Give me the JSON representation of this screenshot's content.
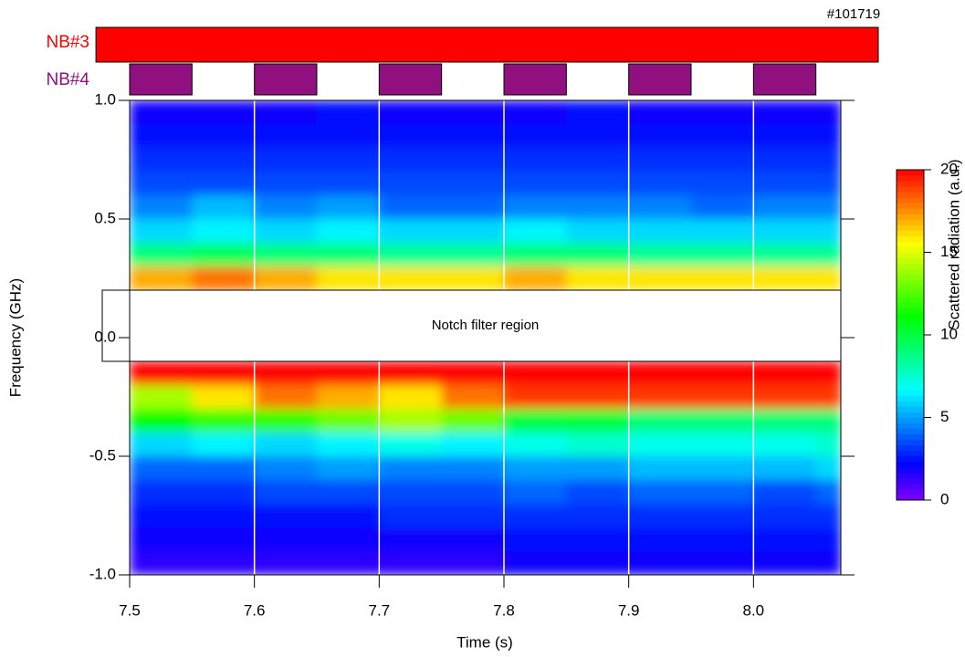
{
  "chart_data": {
    "type": "heatmap",
    "title": "#101719",
    "xlabel": "Time (s)",
    "ylabel": "Frequency (GHz)",
    "xlim": [
      7.5,
      8.07
    ],
    "ylim": [
      -1,
      1
    ],
    "xticks": [
      7.5,
      7.6,
      7.7,
      7.8,
      7.9,
      {
        "value": 8,
        "label": "8.0"
      }
    ],
    "yticks": [
      {
        "value": 1,
        "label": "1.0"
      },
      {
        "value": 0.5,
        "label": "0.5"
      },
      {
        "value": 0,
        "label": "0.0"
      },
      {
        "value": -0.5,
        "label": "-0.5"
      },
      {
        "value": -1,
        "label": "-1.0"
      }
    ],
    "x_edges": [
      7.5,
      7.55,
      7.6,
      7.65,
      7.7,
      7.75,
      7.8,
      7.85,
      7.9,
      7.95,
      8.0,
      8.05,
      8.07
    ],
    "y_edges": [
      1,
      0.9,
      0.8,
      0.7,
      0.6,
      0.5,
      0.4,
      0.3,
      0.2,
      0.1,
      0,
      -0.1,
      -0.2,
      -0.3,
      -0.4,
      -0.5,
      -0.6,
      -0.7,
      -0.8,
      -0.9,
      -1
    ],
    "z": [
      [
        2,
        2,
        2,
        2.5,
        2,
        2,
        2,
        2.5,
        2,
        2,
        2,
        2
      ],
      [
        2.5,
        2.5,
        2.5,
        2.5,
        2.5,
        2.5,
        2.5,
        2.5,
        2.5,
        2.5,
        2.5,
        2.5
      ],
      [
        3,
        3,
        3,
        3,
        3,
        3,
        3,
        3,
        3,
        3,
        3,
        3
      ],
      [
        3.5,
        3.5,
        3.5,
        3.5,
        3.5,
        3.5,
        3.5,
        3.5,
        3.5,
        3.5,
        3.5,
        3.5
      ],
      [
        4.5,
        5.5,
        4.5,
        5,
        4,
        4,
        4.5,
        4.5,
        4.5,
        4,
        4.5,
        4.5
      ],
      [
        6,
        6.5,
        6,
        6.5,
        6,
        6,
        6.5,
        6,
        6,
        6,
        6,
        6
      ],
      [
        9,
        9.5,
        9,
        9,
        8.5,
        8.5,
        9,
        9,
        8.5,
        8.5,
        8.5,
        8.5
      ],
      [
        17,
        18,
        17,
        16,
        16,
        16,
        17,
        16,
        16,
        16,
        16,
        16
      ],
      [
        null,
        null,
        null,
        null,
        null,
        null,
        null,
        null,
        null,
        null,
        null,
        null
      ],
      [
        null,
        null,
        null,
        null,
        null,
        null,
        null,
        null,
        null,
        null,
        null,
        null
      ],
      [
        null,
        null,
        null,
        null,
        null,
        null,
        null,
        null,
        null,
        null,
        null,
        null
      ],
      [
        20,
        20,
        20,
        20,
        20,
        20,
        20,
        20,
        20,
        20,
        20,
        20
      ],
      [
        14,
        16,
        18,
        17,
        16,
        18,
        19,
        19,
        19,
        19,
        19,
        19
      ],
      [
        11,
        12,
        12,
        13,
        14,
        13,
        10,
        10,
        9,
        9,
        9,
        9
      ],
      [
        6,
        6.5,
        6,
        6.5,
        7,
        6.5,
        7,
        7.5,
        7,
        7,
        7,
        7.5
      ],
      [
        4,
        4,
        4.5,
        5,
        4.5,
        4.5,
        5,
        5,
        5.5,
        5.5,
        5.5,
        6
      ],
      [
        3,
        3,
        3.5,
        3.5,
        3.5,
        3.5,
        4,
        3.5,
        4,
        4,
        3.5,
        4
      ],
      [
        2.5,
        2.5,
        2.5,
        2.5,
        3,
        3,
        3,
        3,
        3,
        3,
        3,
        3
      ],
      [
        2,
        2,
        2,
        2,
        2,
        2,
        2.5,
        2.5,
        2.5,
        2.5,
        2.5,
        2.5
      ],
      [
        1.5,
        1.5,
        1.5,
        1.5,
        1.5,
        1.5,
        2,
        2,
        2,
        2,
        2,
        2
      ]
    ],
    "colorbar": {
      "label": "Scattered radiation (a.u.)",
      "zlim": [
        0,
        20
      ],
      "zticks": [
        0,
        5,
        10,
        15,
        20
      ],
      "colormap": "rainbow"
    },
    "notch": {
      "label": "Notch filter region",
      "range": [
        -0.1,
        0.2
      ]
    },
    "beams": [
      {
        "name": "NB#3",
        "color": "#ff0000",
        "intervals": [
          [
            7.473,
            8.1
          ]
        ]
      },
      {
        "name": "NB#4",
        "color": "#901080",
        "intervals": [
          [
            7.5,
            7.55
          ],
          [
            7.6,
            7.65
          ],
          [
            7.7,
            7.75
          ],
          [
            7.8,
            7.85
          ],
          [
            7.9,
            7.95
          ],
          [
            8.0,
            8.05
          ]
        ]
      }
    ]
  }
}
